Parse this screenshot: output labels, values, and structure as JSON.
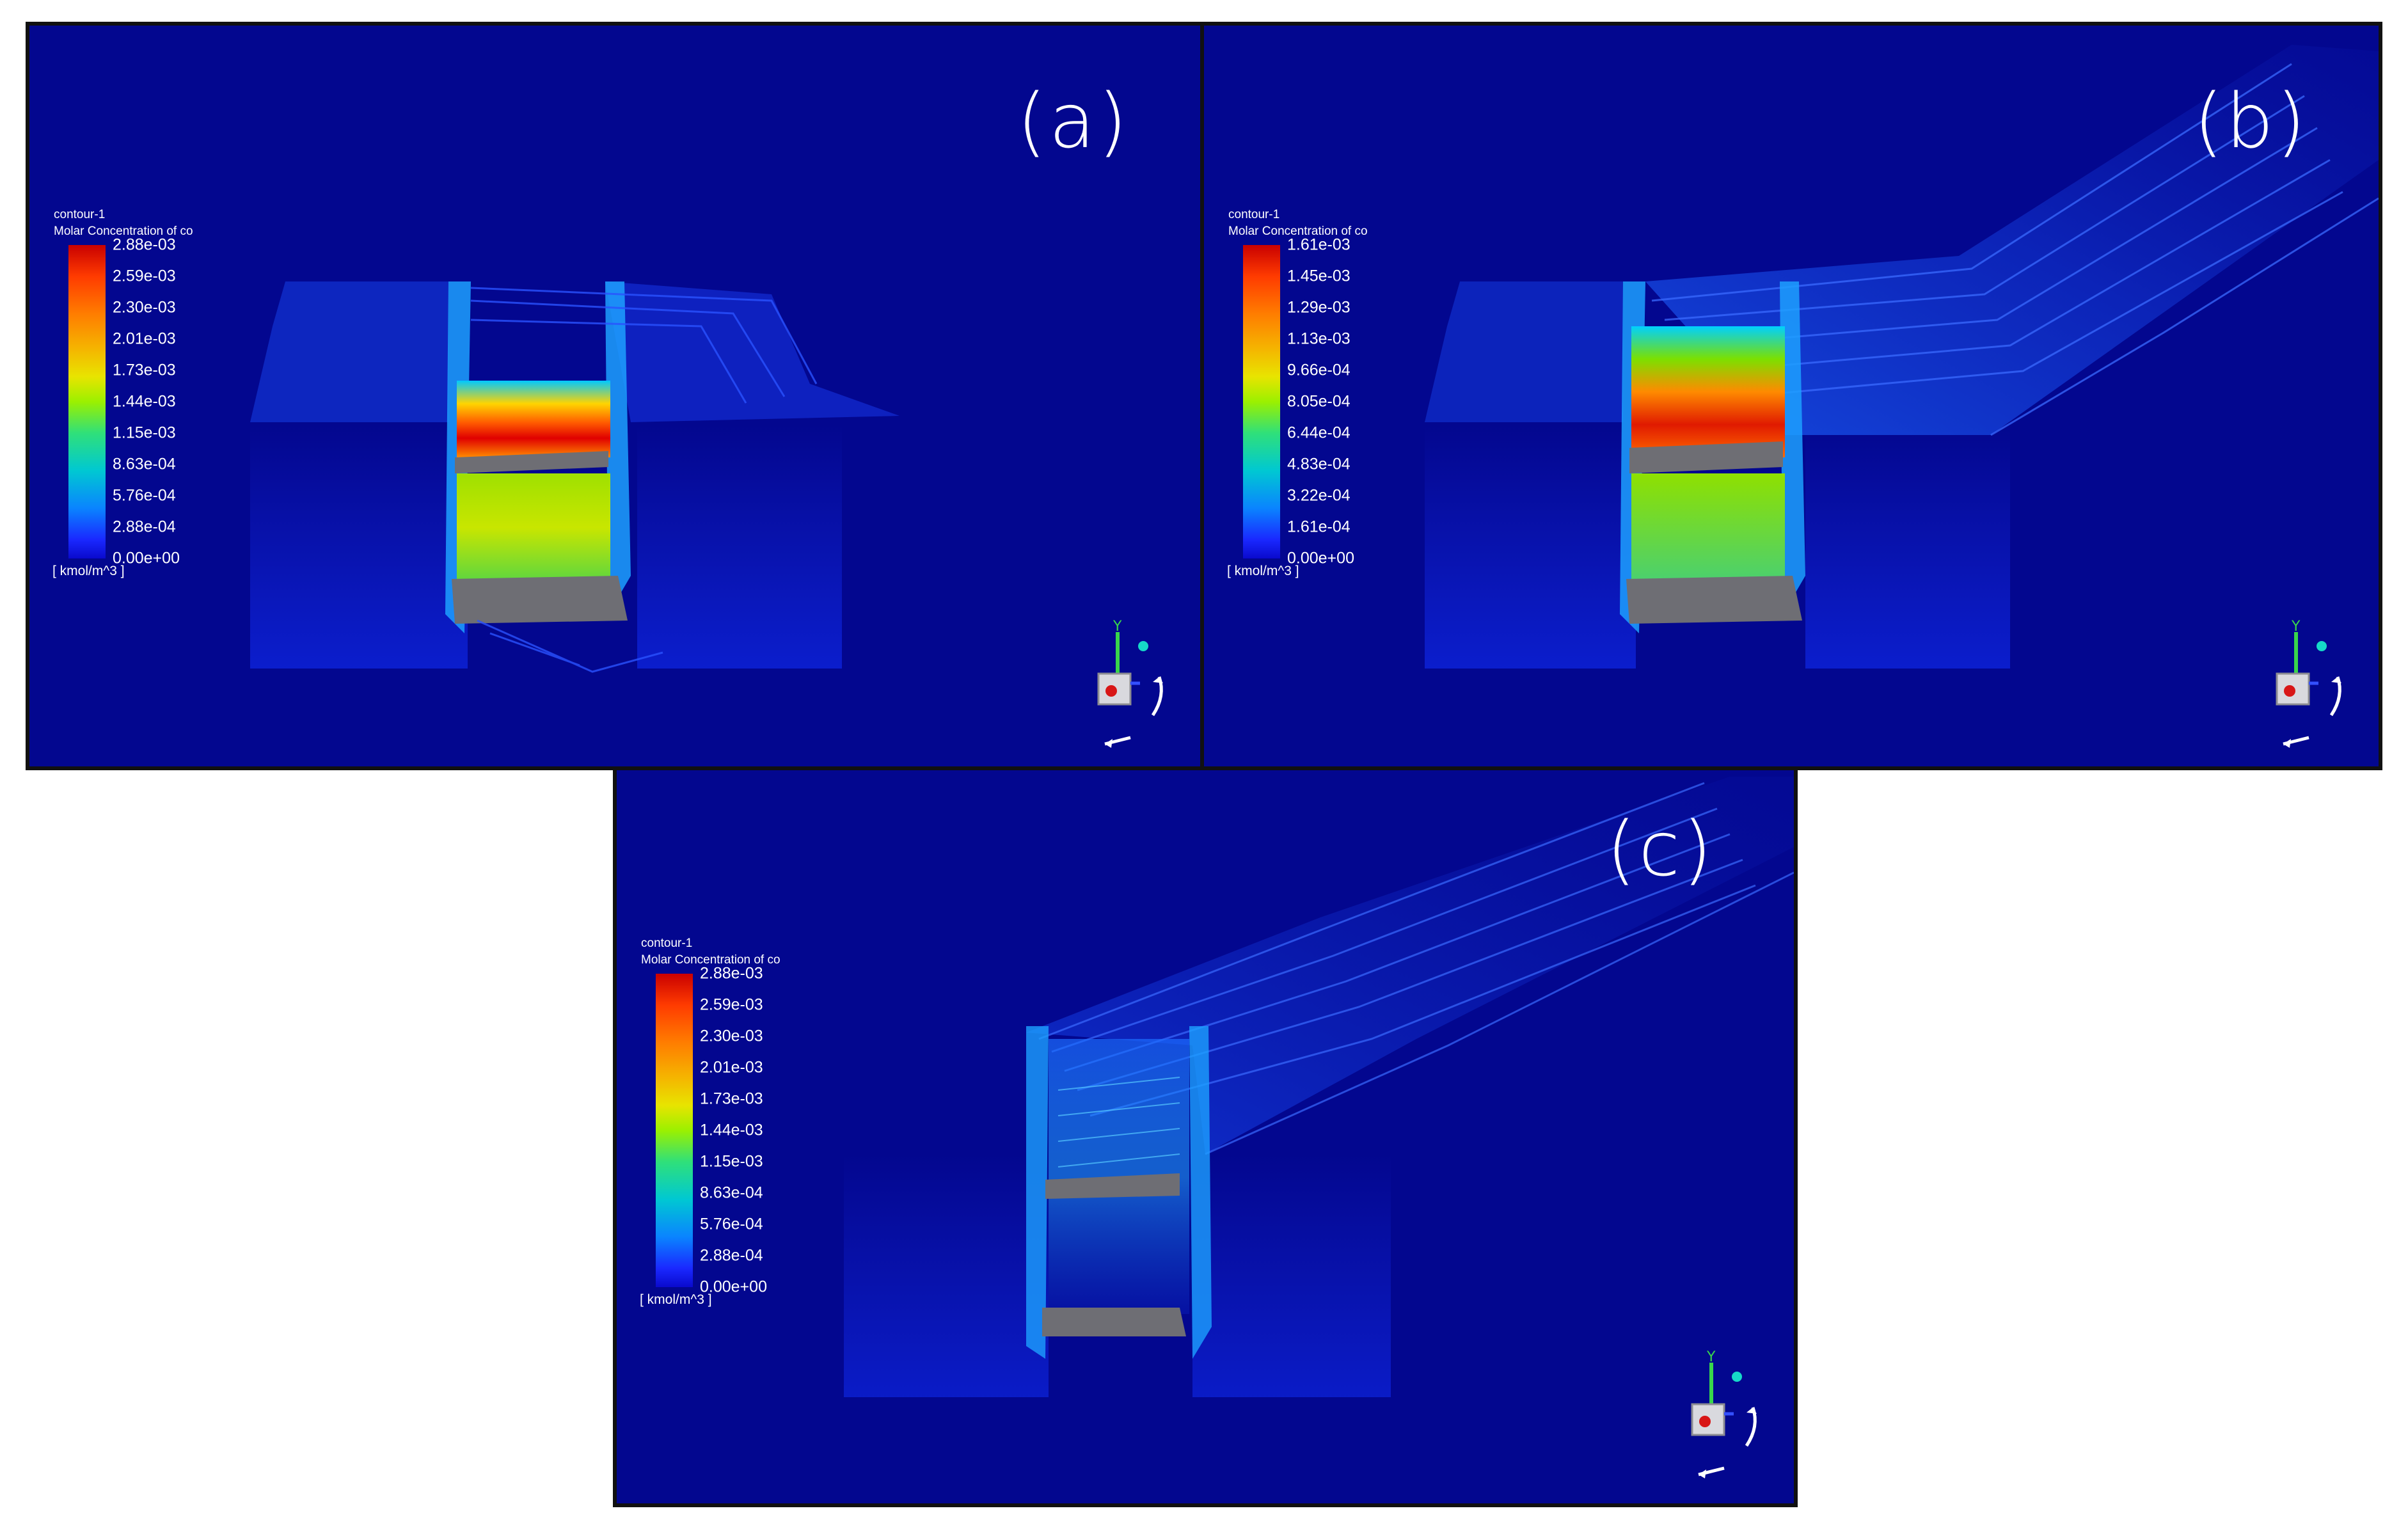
{
  "panels": [
    {
      "id": "a",
      "label": "(a)",
      "legend": {
        "name": "contour-1",
        "title": "Molar Concentration of co",
        "ticks": [
          "2.88e-03",
          "2.59e-03",
          "2.30e-03",
          "2.01e-03",
          "1.73e-03",
          "1.44e-03",
          "1.15e-03",
          "8.63e-04",
          "5.76e-04",
          "2.88e-04",
          "0.00e+00"
        ],
        "unit": "[ kmol/m^3 ]"
      }
    },
    {
      "id": "b",
      "label": "(b)",
      "legend": {
        "name": "contour-1",
        "title": "Molar Concentration of co",
        "ticks": [
          "1.61e-03",
          "1.45e-03",
          "1.29e-03",
          "1.13e-03",
          "9.66e-04",
          "8.05e-04",
          "6.44e-04",
          "4.83e-04",
          "3.22e-04",
          "1.61e-04",
          "0.00e+00"
        ],
        "unit": "[ kmol/m^3 ]"
      }
    },
    {
      "id": "c",
      "label": "(c)",
      "legend": {
        "name": "contour-1",
        "title": "Molar Concentration of co",
        "ticks": [
          "2.88e-03",
          "2.59e-03",
          "2.30e-03",
          "2.01e-03",
          "1.73e-03",
          "1.44e-03",
          "1.15e-03",
          "8.63e-04",
          "5.76e-04",
          "2.88e-04",
          "0.00e+00"
        ],
        "unit": "[ kmol/m^3 ]"
      }
    }
  ],
  "colors": {
    "background": "#03078f",
    "frame": "#111111",
    "colormap_max": "#c90000",
    "colormap_min": "#0a0acd",
    "surface_gray": "#6e6e74"
  },
  "icons": {
    "axis_triad": "axis-triad-icon"
  }
}
